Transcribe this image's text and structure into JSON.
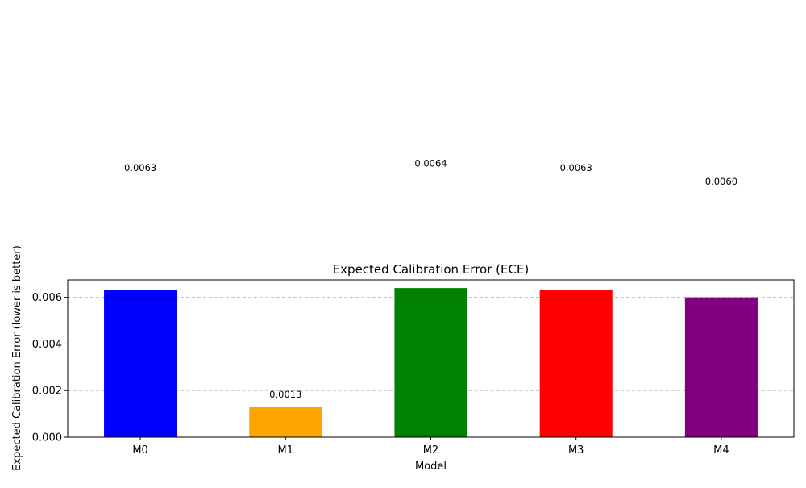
{
  "chart_data": {
    "type": "bar",
    "title": "Expected Calibration Error (ECE)",
    "xlabel": "Model",
    "ylabel": "Expected Calibration Error (lower is better)",
    "categories": [
      "M0",
      "M1",
      "M2",
      "M3",
      "M4"
    ],
    "values": [
      0.0063,
      0.0013,
      0.0064,
      0.0063,
      0.006
    ],
    "value_labels": [
      "0.0063",
      "0.0013",
      "0.0064",
      "0.0063",
      "0.0060"
    ],
    "bar_colors": [
      "#0000ff",
      "#ffa500",
      "#008000",
      "#ff0000",
      "#800080"
    ],
    "ylim": [
      0,
      0.00675
    ],
    "yticks": [
      0,
      0.002,
      0.004,
      0.006
    ],
    "ytick_labels": [
      "0.000",
      "0.002",
      "0.004",
      "0.006"
    ],
    "grid": "y-dashed",
    "legend": "none"
  }
}
